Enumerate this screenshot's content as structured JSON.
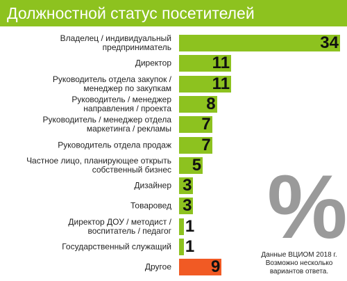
{
  "chart_data": {
    "type": "bar",
    "orientation": "horizontal",
    "title": "Должностной статус посетителей",
    "categories": [
      "Владелец / индивидуальный предприниматель",
      "Директор",
      "Руководитель отдела закупок / менеджер по закупкам",
      "Руководитель / менеджер направления / проекта",
      "Руководитель / менеджер отдела маркетинга / рекламы",
      "Руководитель отдела продаж",
      "Частное лицо, планирующее открыть собственный бизнес",
      "Дизайнер",
      "Товаровед",
      "Директор ДОУ / методист / воспитатель / педагог",
      "Государственный служащий",
      "Другое"
    ],
    "values": [
      34,
      11,
      11,
      8,
      7,
      7,
      5,
      3,
      3,
      1,
      1,
      9
    ],
    "colors": [
      "#8dc21f",
      "#8dc21f",
      "#8dc21f",
      "#8dc21f",
      "#8dc21f",
      "#8dc21f",
      "#8dc21f",
      "#8dc21f",
      "#8dc21f",
      "#8dc21f",
      "#8dc21f",
      "#f15a24"
    ],
    "note": "Данные ВЦИОМ 2018 г. Возможно несколько вариантов ответа."
  }
}
